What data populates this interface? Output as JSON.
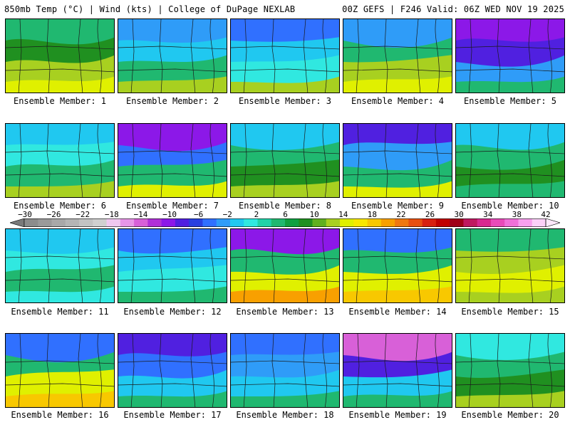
{
  "header": {
    "left": "850mb Temp (°C) | Wind (kts) | College of DuPage NEXLAB",
    "right": "00Z GEFS | F246 Valid: 06Z WED NOV 19 2025"
  },
  "colorbar": {
    "ticks": [
      "−30",
      "−26",
      "−22",
      "−18",
      "−14",
      "−10",
      "−6",
      "−2",
      "2",
      "6",
      "10",
      "14",
      "18",
      "22",
      "26",
      "30",
      "34",
      "38",
      "42"
    ],
    "colors": [
      "#8c8c8c",
      "#9a9a9a",
      "#a8a8a8",
      "#b5b5b5",
      "#c3c3c3",
      "#d0d0d0",
      "#f0c8f0",
      "#e896e8",
      "#d860d8",
      "#b030d8",
      "#8c18e8",
      "#5020e0",
      "#2840e0",
      "#3070ff",
      "#2f9cf8",
      "#20c8f0",
      "#30e8e0",
      "#20d2a8",
      "#20b870",
      "#10a040",
      "#209020",
      "#60b020",
      "#a8d020",
      "#e0f000",
      "#f8e800",
      "#f8c800",
      "#f8a000",
      "#f07810",
      "#e85010",
      "#d82010",
      "#c00000",
      "#a00018",
      "#c01860",
      "#d82890",
      "#e84ab8",
      "#f070d8",
      "#f8a0ee",
      "#fbd0f8"
    ]
  },
  "panels": [
    {
      "label": "Ensemble Member: 1"
    },
    {
      "label": "Ensemble Member: 2"
    },
    {
      "label": "Ensemble Member: 3"
    },
    {
      "label": "Ensemble Member: 4"
    },
    {
      "label": "Ensemble Member: 5"
    },
    {
      "label": "Ensemble Member: 6"
    },
    {
      "label": "Ensemble Member: 7"
    },
    {
      "label": "Ensemble Member: 8"
    },
    {
      "label": "Ensemble Member: 9"
    },
    {
      "label": "Ensemble Member: 10"
    },
    {
      "label": "Ensemble Member: 11"
    },
    {
      "label": "Ensemble Member: 12"
    },
    {
      "label": "Ensemble Member: 13"
    },
    {
      "label": "Ensemble Member: 14"
    },
    {
      "label": "Ensemble Member: 15"
    },
    {
      "label": "Ensemble Member: 16"
    },
    {
      "label": "Ensemble Member: 17"
    },
    {
      "label": "Ensemble Member: 18"
    },
    {
      "label": "Ensemble Member: 19"
    },
    {
      "label": "Ensemble Member: 20"
    }
  ]
}
